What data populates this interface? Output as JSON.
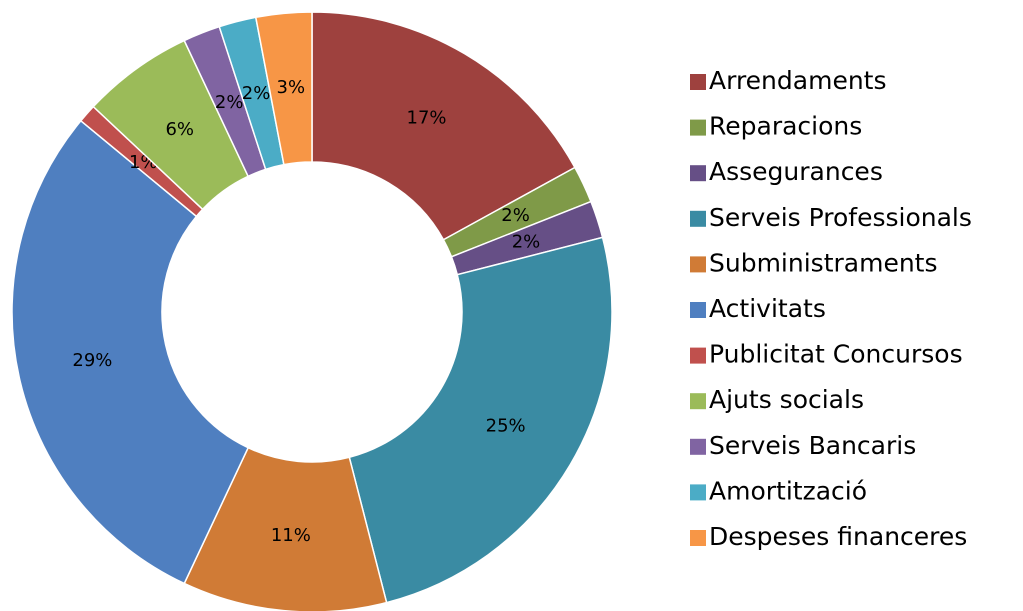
{
  "chart_data": {
    "type": "donut",
    "categories": [
      "Arrendaments",
      "Reparacions",
      "Assegurances",
      "Serveis Professionals",
      "Subministraments",
      "Activitats",
      "Publicitat Concursos",
      "Ajuts socials",
      "Serveis Bancaris",
      "Amortització",
      "Despeses financeres"
    ],
    "values": [
      17,
      2,
      2,
      25,
      11,
      29,
      1,
      6,
      2,
      2,
      3
    ],
    "value_labels": [
      "17%",
      "2%",
      "2%",
      "25%",
      "11%",
      "29%",
      "1%",
      "6%",
      "2%",
      "2%",
      "3%"
    ],
    "colors": [
      "#9e413e",
      "#7f9a48",
      "#664f86",
      "#3a8ba3",
      "#d07b36",
      "#4f7fc0",
      "#c0504d",
      "#9bbb59",
      "#8064a2",
      "#4bacc6",
      "#f79646"
    ],
    "legend": "right"
  }
}
